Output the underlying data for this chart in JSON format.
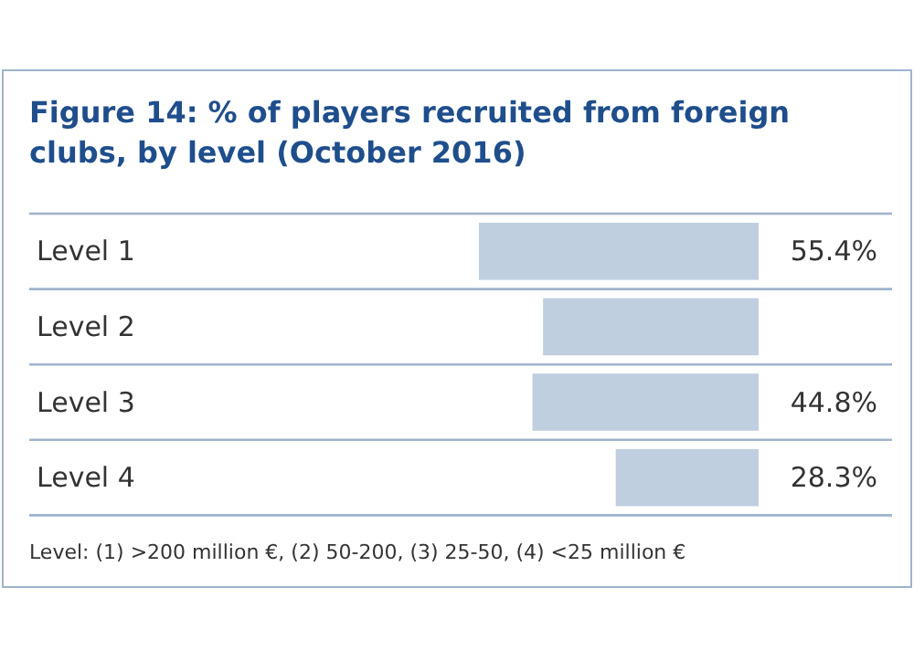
{
  "chart_data": {
    "type": "bar",
    "orientation": "horizontal",
    "title": "Figure 14: % of players recruited from foreign clubs, by level (October 2016)",
    "categories": [
      "Level 1",
      "Level 2",
      "Level 3",
      "Level 4"
    ],
    "values": [
      55.4,
      42.7,
      44.8,
      28.3
    ],
    "value_labels": [
      "55.4%",
      null,
      "44.8%",
      "28.3%"
    ],
    "color": "#bfcfe0",
    "annotations": [
      "Level: (1) >200 million €, (2) 50-200, (3) 25-50, (4) <25 million €"
    ]
  }
}
